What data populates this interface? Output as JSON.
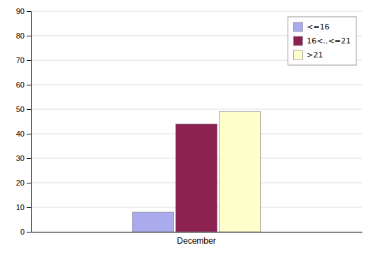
{
  "chart_data": {
    "type": "bar",
    "categories": [
      "December"
    ],
    "series": [
      {
        "name": "<=16",
        "color": "#aaaaee",
        "values": [
          8
        ]
      },
      {
        "name": "16<..<=21",
        "color": "#8b2252",
        "values": [
          44
        ]
      },
      {
        "name": ">21",
        "color": "#ffffcc",
        "values": [
          49
        ]
      }
    ],
    "ylim": [
      0,
      90
    ],
    "yticks": [
      0,
      10,
      20,
      30,
      40,
      50,
      60,
      70,
      80,
      90
    ],
    "grid": true,
    "legend": "upper-right"
  }
}
